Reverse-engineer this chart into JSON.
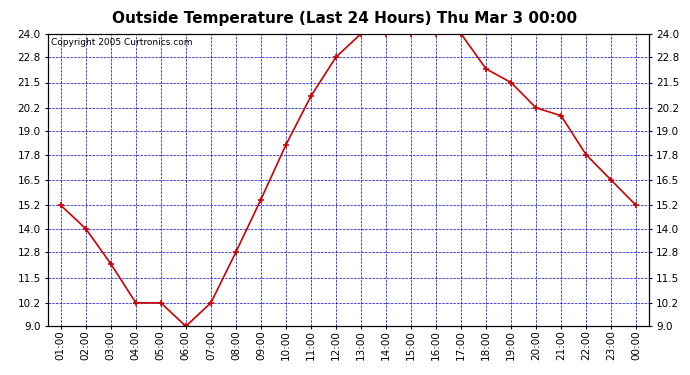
{
  "title": "Outside Temperature (Last 24 Hours) Thu Mar 3 00:00",
  "copyright": "Copyright 2005 Curtronics.com",
  "x_labels": [
    "01:00",
    "02:00",
    "03:00",
    "04:00",
    "05:00",
    "06:00",
    "07:00",
    "08:00",
    "09:00",
    "10:00",
    "11:00",
    "12:00",
    "13:00",
    "14:00",
    "15:00",
    "16:00",
    "17:00",
    "18:00",
    "19:00",
    "20:00",
    "21:00",
    "22:00",
    "23:00",
    "00:00"
  ],
  "y_values": [
    15.2,
    14.0,
    12.2,
    10.2,
    10.2,
    9.0,
    10.2,
    12.8,
    15.5,
    18.3,
    20.8,
    22.8,
    24.0,
    24.0,
    24.0,
    24.0,
    24.0,
    22.2,
    21.5,
    20.2,
    19.8,
    17.8,
    16.5,
    15.2
  ],
  "line_color": "#cc0000",
  "marker_color": "#cc0000",
  "bg_color": "#ffffff",
  "plot_bg_color": "#ffffff",
  "grid_color": "#0000cc",
  "axis_color": "#000000",
  "ylim": [
    9.0,
    24.0
  ],
  "yticks": [
    9.0,
    10.2,
    11.5,
    12.8,
    14.0,
    15.2,
    16.5,
    17.8,
    19.0,
    20.2,
    21.5,
    22.8,
    24.0
  ],
  "title_fontsize": 11,
  "copyright_fontsize": 6.5,
  "tick_fontsize": 7.5
}
